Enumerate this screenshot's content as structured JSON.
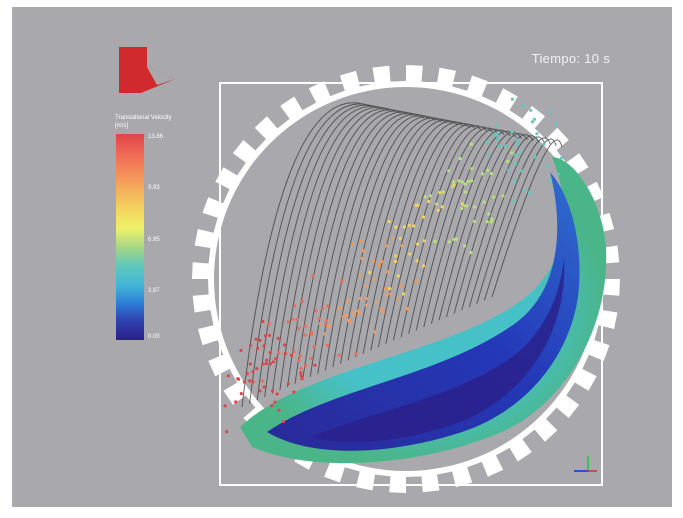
{
  "overlay": {
    "time_label": "Tiempo: 10 s"
  },
  "legend": {
    "title": "Translational Velocity",
    "unit": "[m/s]",
    "ticks": [
      "13.86",
      "9.93",
      "6.95",
      "3.97",
      "0.00"
    ],
    "colors": [
      "#e0454a",
      "#f4d25e",
      "#5fc9bb",
      "#2c7fd6",
      "#2a1f8a"
    ]
  },
  "colors": {
    "background": "#a9a9ad",
    "gear": "#ffffff",
    "logo": "#d02a2e",
    "particle_bed": "#3552c8",
    "particle_edge": "#45b89a"
  },
  "icons": {
    "logo": "brand-logo-icon",
    "axes": "axes-triad-icon"
  }
}
